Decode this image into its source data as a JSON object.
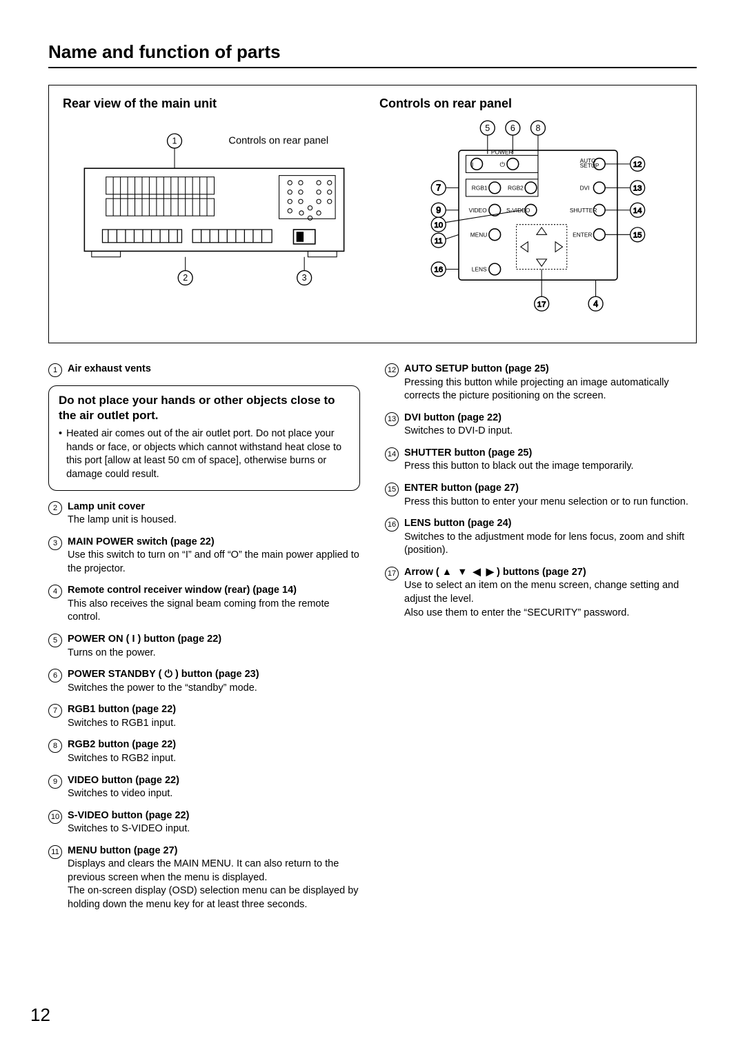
{
  "page_title": "Name and function of parts",
  "page_number": "12",
  "diagram": {
    "left_heading": "Rear view of the main unit",
    "right_heading": "Controls on rear panel",
    "callout_label": "Controls on rear panel",
    "panel_labels": {
      "power": "POWER",
      "auto_setup_l1": "AUTO",
      "auto_setup_l2": "SETUP",
      "rgb1": "RGB1",
      "rgb2": "RGB2",
      "dvi": "DVI",
      "video": "VIDEO",
      "svideo": "S-VIDEO",
      "shutter": "SHUTTER",
      "menu": "MENU",
      "enter": "ENTER",
      "lens": "LENS"
    },
    "callouts_left": {
      "1": "1",
      "2": "2",
      "3": "3"
    },
    "callouts_right": {
      "4": "4",
      "5": "5",
      "6": "6",
      "7": "7",
      "8": "8",
      "9": "9",
      "10": "10",
      "11": "11",
      "12": "12",
      "13": "13",
      "14": "14",
      "15": "15",
      "16": "16",
      "17": "17"
    }
  },
  "warning": {
    "heading": "Do not place your hands or other objects close to the air outlet port.",
    "body": "Heated air comes out of the air outlet port. Do not place your hands or face, or objects which cannot withstand heat close to this port [allow at least 50 cm of space], otherwise burns or damage could result."
  },
  "left_items": [
    {
      "n": "1",
      "title": "Air exhaust vents",
      "desc": ""
    },
    {
      "n": "2",
      "title": "Lamp unit cover",
      "desc": "The lamp unit is housed."
    },
    {
      "n": "3",
      "title": "MAIN POWER switch (page 22)",
      "desc": "Use this switch to turn on “I” and off “O” the main power applied to the projector."
    },
    {
      "n": "4",
      "title": "Remote control receiver window (rear) (page 14)",
      "desc": "This also receives the signal beam coming from the remote control."
    },
    {
      "n": "5",
      "title": "POWER ON ( I ) button (page 22)",
      "desc": "Turns on the power."
    },
    {
      "n": "6",
      "title": "POWER STANDBY ( ⏻ ) button (page 23)",
      "desc": "Switches the power to the “standby” mode."
    },
    {
      "n": "7",
      "title": "RGB1 button (page 22)",
      "desc": "Switches to RGB1 input."
    },
    {
      "n": "8",
      "title": "RGB2 button (page 22)",
      "desc": "Switches to RGB2 input."
    },
    {
      "n": "9",
      "title": "VIDEO button (page 22)",
      "desc": "Switches to video input."
    },
    {
      "n": "10",
      "title": "S-VIDEO button (page 22)",
      "desc": "Switches to S-VIDEO input."
    },
    {
      "n": "11",
      "title": "MENU button (page 27)",
      "desc": "Displays and clears the MAIN MENU. It can also return to the previous screen when the menu is displayed.\nThe on-screen display (OSD) selection menu can be displayed by holding down the menu key for at least three seconds."
    }
  ],
  "right_items": [
    {
      "n": "12",
      "title": "AUTO SETUP button (page 25)",
      "desc": "Pressing this button while projecting an image automatically corrects the picture positioning on the screen."
    },
    {
      "n": "13",
      "title": "DVI button (page 22)",
      "desc": "Switches to DVI-D input."
    },
    {
      "n": "14",
      "title": "SHUTTER button (page 25)",
      "desc": "Press this button to black out the image temporarily."
    },
    {
      "n": "15",
      "title": "ENTER button (page 27)",
      "desc": "Press this button to enter your menu selection or to run function."
    },
    {
      "n": "16",
      "title": "LENS button (page 24)",
      "desc": "Switches to the adjustment mode for lens focus, zoom and shift (position)."
    },
    {
      "n": "17",
      "title": "Arrow ( ▲  ▼  ◀  ▶ ) buttons (page 27)",
      "desc": "Use to select an item on the menu screen, change setting and adjust the level.\nAlso use them to enter the “SECURITY” password."
    }
  ]
}
